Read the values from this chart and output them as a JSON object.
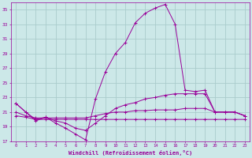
{
  "background_color": "#cce8e8",
  "grid_color": "#aacccc",
  "line_color": "#990099",
  "xlabel": "Windchill (Refroidissement éolien,°C)",
  "xlim": [
    -0.5,
    23.5
  ],
  "ylim": [
    17,
    36
  ],
  "yticks": [
    17,
    19,
    21,
    23,
    25,
    27,
    29,
    31,
    33,
    35
  ],
  "xticks": [
    0,
    1,
    2,
    3,
    4,
    5,
    6,
    7,
    8,
    9,
    10,
    11,
    12,
    13,
    14,
    15,
    16,
    17,
    18,
    19,
    20,
    21,
    22,
    23
  ],
  "series": [
    {
      "x": [
        0,
        1,
        2,
        3,
        4,
        5,
        6,
        7,
        8,
        9,
        10,
        11,
        12,
        13,
        14,
        15,
        16,
        17,
        18,
        19,
        20,
        21,
        22,
        23
      ],
      "y": [
        20.5,
        20.3,
        20.0,
        20.0,
        20.0,
        20.0,
        20.0,
        20.0,
        20.0,
        20.0,
        20.0,
        20.0,
        20.0,
        20.0,
        20.0,
        20.0,
        20.0,
        20.0,
        20.0,
        20.0,
        20.0,
        20.0,
        20.0,
        20.0
      ]
    },
    {
      "x": [
        0,
        1,
        2,
        3,
        4,
        5,
        6,
        7,
        8,
        9,
        10,
        11,
        12,
        13,
        14,
        15,
        16,
        17,
        18,
        19,
        20,
        21,
        22,
        23
      ],
      "y": [
        21.0,
        20.5,
        20.2,
        20.2,
        20.2,
        20.2,
        20.2,
        20.2,
        20.5,
        20.8,
        21.0,
        21.0,
        21.2,
        21.2,
        21.3,
        21.3,
        21.3,
        21.5,
        21.5,
        21.5,
        21.0,
        21.0,
        21.0,
        20.5
      ]
    },
    {
      "x": [
        0,
        1,
        2,
        3,
        4,
        5,
        6,
        7,
        8,
        9,
        10,
        11,
        12,
        13,
        14,
        15,
        16,
        17,
        18,
        19,
        20,
        21,
        22,
        23
      ],
      "y": [
        22.2,
        21.0,
        20.0,
        20.3,
        19.8,
        19.5,
        18.8,
        18.5,
        19.5,
        20.5,
        21.5,
        22.0,
        22.3,
        22.8,
        23.0,
        23.3,
        23.5,
        23.5,
        23.5,
        23.5,
        21.0,
        21.0,
        21.0,
        20.5
      ]
    },
    {
      "x": [
        0,
        1,
        2,
        3,
        4,
        5,
        6,
        7,
        8,
        9,
        10,
        11,
        12,
        13,
        14,
        15,
        16,
        17,
        18,
        19,
        20,
        21,
        22,
        23
      ],
      "y": [
        22.2,
        21.0,
        19.8,
        20.3,
        19.5,
        18.8,
        18.0,
        17.2,
        22.8,
        26.5,
        29.0,
        30.5,
        33.2,
        34.5,
        35.2,
        35.7,
        33.0,
        24.0,
        23.8,
        24.0,
        21.0,
        21.0,
        21.0,
        20.5
      ]
    }
  ]
}
